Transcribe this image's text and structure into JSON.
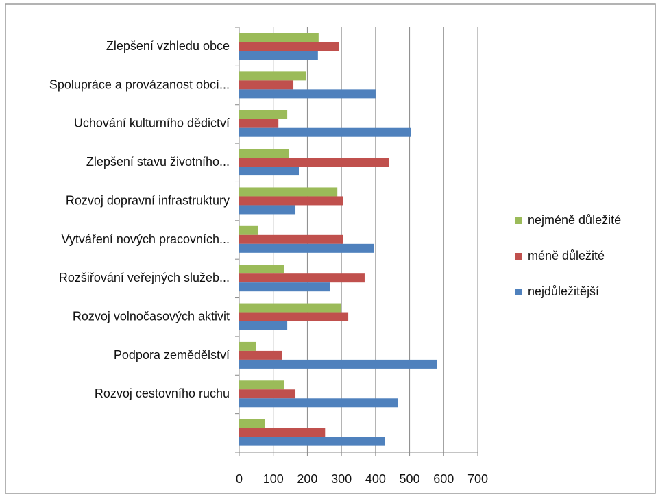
{
  "chart_data": {
    "type": "bar",
    "orientation": "horizontal",
    "categories": [
      "Zlepšení vzhledu obce",
      "Spolupráce a provázanost obcí...",
      "Uchování kulturního dědictví",
      "Zlepšení stavu životního...",
      "Rozvoj dopravní infrastruktury",
      "Vytváření nových pracovních...",
      "Rozšiřování veřejných služeb...",
      "Rozvoj volnočasových aktivit",
      "Podpora zemědělství",
      "Rozvoj cestovního ruchu",
      null
    ],
    "series": [
      {
        "name": "nejméně důležité",
        "color": "#9bbb59",
        "values": [
          233,
          197,
          141,
          145,
          288,
          56,
          131,
          298,
          50,
          131,
          76
        ]
      },
      {
        "name": "méně důležité",
        "color": "#c0504d",
        "values": [
          292,
          159,
          115,
          439,
          304,
          304,
          368,
          320,
          125,
          165,
          252
        ]
      },
      {
        "name": "nejdůležitější",
        "color": "#4f81bd",
        "values": [
          231,
          400,
          503,
          175,
          165,
          396,
          266,
          141,
          580,
          465,
          427
        ]
      }
    ],
    "xlim": [
      0,
      700
    ],
    "xticks": [
      0,
      100,
      200,
      300,
      400,
      500,
      600,
      700
    ],
    "grid": true,
    "legend": "right"
  }
}
